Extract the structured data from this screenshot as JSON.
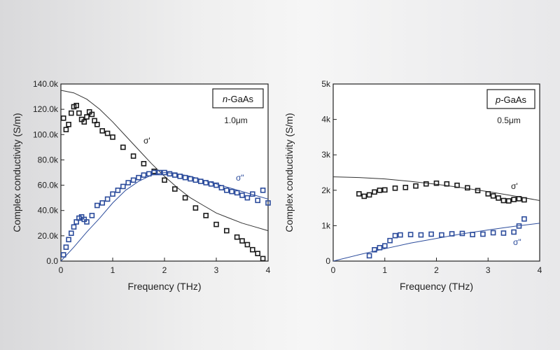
{
  "chart_data": [
    {
      "type": "scatter",
      "xlabel": "Frequency (THz)",
      "ylabel": "Complex conductivity (S/m)",
      "xlim": [
        0,
        4
      ],
      "ylim": [
        0,
        140000
      ],
      "xticks": [
        "0",
        "1",
        "2",
        "3",
        "4"
      ],
      "yticks": [
        "0.0",
        "20.0k",
        "40.0k",
        "60.0k",
        "80.0k",
        "100.0k",
        "120.0k",
        "140.0k"
      ],
      "legend_box": {
        "prefix": "n",
        "suffix": "-GaAs",
        "thickness": "1.0μm"
      },
      "series": [
        {
          "name": "σ'",
          "marker": "open-square",
          "color": "#1a1a1a",
          "x": [
            0.05,
            0.1,
            0.15,
            0.2,
            0.25,
            0.3,
            0.35,
            0.4,
            0.45,
            0.5,
            0.55,
            0.6,
            0.65,
            0.7,
            0.8,
            0.9,
            1.0,
            1.2,
            1.4,
            1.6,
            1.8,
            2.0,
            2.2,
            2.4,
            2.6,
            2.8,
            3.0,
            3.2,
            3.4,
            3.5,
            3.6,
            3.7,
            3.8,
            3.9
          ],
          "y": [
            113000,
            104000,
            108000,
            117000,
            122000,
            123000,
            117000,
            112000,
            110000,
            114000,
            118000,
            116000,
            111000,
            108000,
            103000,
            101000,
            98000,
            90000,
            83000,
            77000,
            71000,
            64000,
            57000,
            50000,
            42000,
            36000,
            29000,
            24000,
            19000,
            16000,
            13000,
            9000,
            6000,
            2000
          ]
        },
        {
          "name": "σ\"",
          "marker": "open-square",
          "color": "#2c4c9c",
          "x": [
            0.05,
            0.1,
            0.15,
            0.2,
            0.25,
            0.3,
            0.35,
            0.4,
            0.45,
            0.5,
            0.6,
            0.7,
            0.8,
            0.9,
            1.0,
            1.1,
            1.2,
            1.3,
            1.4,
            1.5,
            1.6,
            1.7,
            1.8,
            1.9,
            2.0,
            2.1,
            2.2,
            2.3,
            2.4,
            2.5,
            2.6,
            2.7,
            2.8,
            2.9,
            3.0,
            3.1,
            3.2,
            3.3,
            3.4,
            3.5,
            3.6,
            3.7,
            3.8,
            3.9,
            4.0
          ],
          "y": [
            5000,
            11000,
            17000,
            22000,
            27000,
            31000,
            34000,
            35000,
            33000,
            31000,
            36000,
            44000,
            46000,
            49000,
            53000,
            56000,
            59000,
            62000,
            64000,
            66000,
            68000,
            69000,
            70000,
            70000,
            70000,
            69000,
            68000,
            67000,
            66000,
            65000,
            64000,
            63000,
            62000,
            61000,
            60000,
            58000,
            56000,
            55000,
            54000,
            52000,
            50000,
            53000,
            48000,
            56000,
            46000
          ]
        }
      ],
      "fit_curves": [
        {
          "for": "σ'",
          "x": [
            0,
            0.25,
            0.5,
            0.75,
            1.0,
            1.25,
            1.5,
            1.75,
            2.0,
            2.25,
            2.5,
            2.75,
            3.0,
            3.25,
            3.5,
            3.75,
            4.0
          ],
          "y": [
            135000,
            133000,
            128000,
            120000,
            110000,
            99000,
            88000,
            77000,
            67000,
            58000,
            50000,
            44000,
            38000,
            34000,
            30000,
            27000,
            24000
          ]
        },
        {
          "for": "σ\"",
          "x": [
            0,
            0.25,
            0.5,
            0.75,
            1.0,
            1.25,
            1.5,
            1.75,
            2.0,
            2.25,
            2.5,
            2.75,
            3.0,
            3.25,
            3.5,
            3.75,
            4.0
          ],
          "y": [
            0,
            11000,
            23000,
            34000,
            46000,
            56000,
            63000,
            68000,
            70000,
            69000,
            67000,
            64000,
            61000,
            58000,
            55000,
            52000,
            49000
          ]
        }
      ]
    },
    {
      "type": "scatter",
      "xlabel": "Frequency (THz)",
      "ylabel": "Complex conductivity (S/m)",
      "xlim": [
        0,
        4
      ],
      "ylim": [
        0,
        5000
      ],
      "xticks": [
        "0",
        "1",
        "2",
        "3",
        "4"
      ],
      "yticks": [
        "0",
        "1k",
        "2k",
        "3k",
        "4k",
        "5k"
      ],
      "legend_box": {
        "prefix": "p",
        "suffix": "-GaAs",
        "thickness": "0.5μm"
      },
      "series": [
        {
          "name": "σ'",
          "marker": "open-square",
          "color": "#1a1a1a",
          "x": [
            0.5,
            0.6,
            0.7,
            0.8,
            0.9,
            1.0,
            1.2,
            1.4,
            1.6,
            1.8,
            2.0,
            2.2,
            2.4,
            2.6,
            2.8,
            3.0,
            3.1,
            3.2,
            3.3,
            3.4,
            3.5,
            3.6,
            3.7
          ],
          "y": [
            1900,
            1830,
            1870,
            1950,
            2000,
            2010,
            2060,
            2080,
            2120,
            2180,
            2200,
            2180,
            2140,
            2070,
            1990,
            1900,
            1840,
            1780,
            1710,
            1700,
            1740,
            1760,
            1730
          ]
        },
        {
          "name": "σ\"",
          "marker": "open-square",
          "color": "#2c4c9c",
          "x": [
            0.7,
            0.8,
            0.9,
            1.0,
            1.1,
            1.2,
            1.3,
            1.5,
            1.7,
            1.9,
            2.1,
            2.3,
            2.5,
            2.7,
            2.9,
            3.1,
            3.3,
            3.5,
            3.6,
            3.7
          ],
          "y": [
            150,
            320,
            380,
            430,
            580,
            720,
            740,
            750,
            740,
            760,
            740,
            770,
            780,
            750,
            760,
            800,
            790,
            820,
            990,
            1190
          ]
        }
      ],
      "fit_curves": [
        {
          "for": "σ'",
          "x": [
            0,
            0.5,
            1.0,
            1.5,
            2.0,
            2.5,
            3.0,
            3.5,
            4.0
          ],
          "y": [
            2380,
            2360,
            2320,
            2250,
            2170,
            2070,
            1960,
            1840,
            1710
          ]
        },
        {
          "for": "σ\"",
          "x": [
            0,
            0.5,
            1.0,
            1.5,
            2.0,
            2.5,
            3.0,
            3.5,
            4.0
          ],
          "y": [
            0,
            180,
            350,
            510,
            640,
            770,
            880,
            980,
            1070
          ]
        }
      ]
    }
  ]
}
